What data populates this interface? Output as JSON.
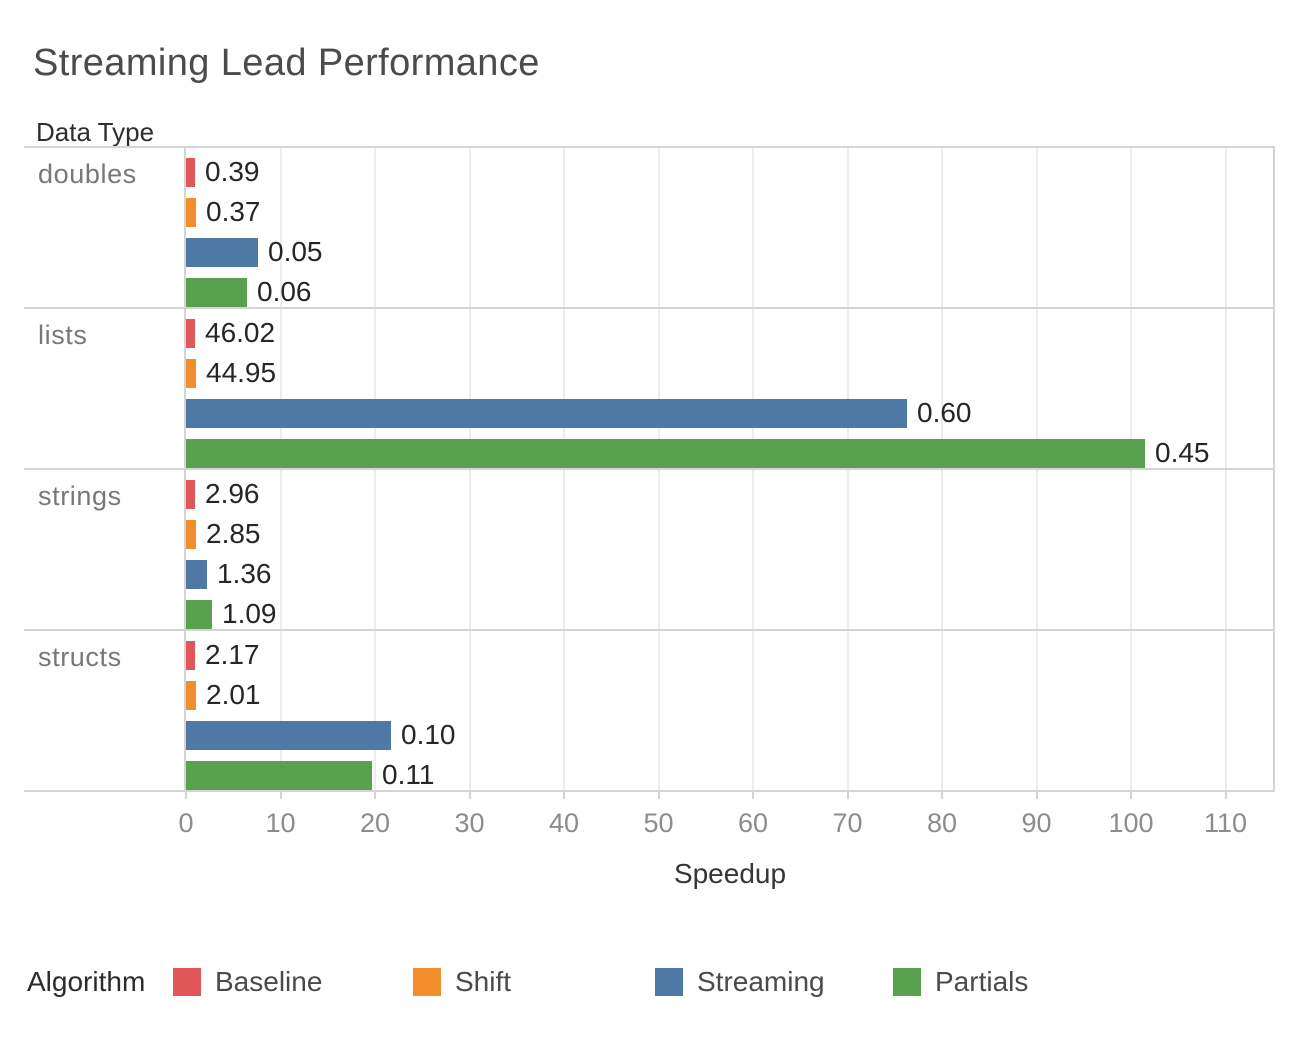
{
  "title": "Streaming Lead Performance",
  "chart_data": {
    "type": "bar",
    "orientation": "horizontal",
    "title": "Streaming Lead Performance",
    "row_header": "Data Type",
    "xlabel": "Speedup",
    "xlim": [
      0,
      115
    ],
    "xticks": [
      0,
      10,
      20,
      30,
      40,
      50,
      60,
      70,
      80,
      90,
      100,
      110
    ],
    "grid": true,
    "legend": {
      "title": "Algorithm",
      "position": "bottom",
      "entries": [
        {
          "label": "Baseline",
          "color": "#e15759"
        },
        {
          "label": "Shift",
          "color": "#f28e2b"
        },
        {
          "label": "Streaming",
          "color": "#4e79a7"
        },
        {
          "label": "Partials",
          "color": "#59a14f"
        }
      ]
    },
    "note": "bar length encodes speedup on x-axis; printed label is the raw measured value",
    "categories": [
      "doubles",
      "lists",
      "strings",
      "structs"
    ],
    "rows": [
      {
        "category": "doubles",
        "bars": [
          {
            "series": "Baseline",
            "label": "0.39",
            "speedup": 1.0
          },
          {
            "series": "Shift",
            "label": "0.37",
            "speedup": 1.05
          },
          {
            "series": "Streaming",
            "label": "0.05",
            "speedup": 7.6
          },
          {
            "series": "Partials",
            "label": "0.06",
            "speedup": 6.5
          }
        ]
      },
      {
        "category": "lists",
        "bars": [
          {
            "series": "Baseline",
            "label": "46.02",
            "speedup": 1.0
          },
          {
            "series": "Shift",
            "label": "44.95",
            "speedup": 1.02
          },
          {
            "series": "Streaming",
            "label": "0.60",
            "speedup": 76.3
          },
          {
            "series": "Partials",
            "label": "0.45",
            "speedup": 101.5
          }
        ]
      },
      {
        "category": "strings",
        "bars": [
          {
            "series": "Baseline",
            "label": "2.96",
            "speedup": 1.0
          },
          {
            "series": "Shift",
            "label": "2.85",
            "speedup": 1.04
          },
          {
            "series": "Streaming",
            "label": "1.36",
            "speedup": 2.18
          },
          {
            "series": "Partials",
            "label": "1.09",
            "speedup": 2.72
          }
        ]
      },
      {
        "category": "structs",
        "bars": [
          {
            "series": "Baseline",
            "label": "2.17",
            "speedup": 1.0
          },
          {
            "series": "Shift",
            "label": "2.01",
            "speedup": 1.08
          },
          {
            "series": "Streaming",
            "label": "0.10",
            "speedup": 21.7
          },
          {
            "series": "Partials",
            "label": "0.11",
            "speedup": 19.7
          }
        ]
      }
    ]
  }
}
